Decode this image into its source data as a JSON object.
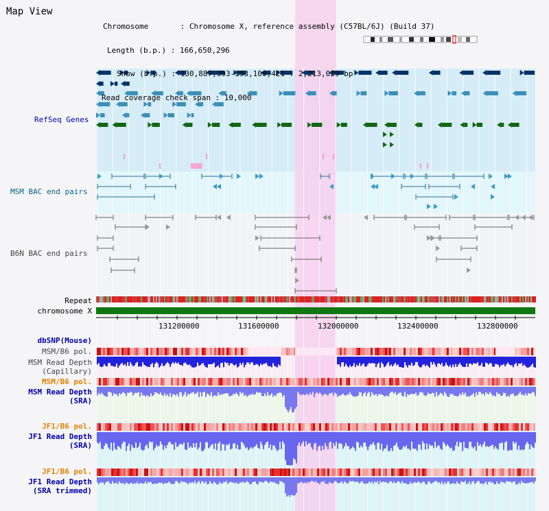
{
  "window": {
    "title": "Map View"
  },
  "header": {
    "chromosome": "Chromosome       : Chromosome X, reference assembly (C57BL/6J) (Build 37)",
    "length": "Length (b.p.) : 166,650,296",
    "show": "Show (b.p.) : 130,887,393-133,100,421 : 2,213,029 bp",
    "coverage": "Read coverage check span : 10,000"
  },
  "tracks": {
    "refseq": "RefSeq Genes",
    "msm_bac": "MSM BAC end pairs",
    "b6n_bac": "B6N BAC end pairs",
    "repeat": "Repeat",
    "chromosome": "chromosome X",
    "dbsnp": "dbSNP(Mouse)",
    "msm_b6_pol_1": "MSM/B6 pol.",
    "msm_depth_cap_1": "MSM Read Depth",
    "msm_depth_cap_2": "(Capillary)",
    "msm_b6_pol_2": "MSM/B6 pol.",
    "msm_depth_sra_1": "MSM Read Depth",
    "msm_depth_sra_2": "(SRA)",
    "jf1_b6_pol_1": "JF1/B6 pol.",
    "jf1_depth_sra_1": "JF1 Read Depth",
    "jf1_depth_sra_2": "(SRA)",
    "jf1_b6_pol_2": "JF1/B6 pol.",
    "jf1_depth_trim_1": "JF1 Read Depth",
    "jf1_depth_trim_2": "(SRA trimmed)"
  },
  "axis": {
    "ticks": [
      "131200000",
      "131600000",
      "132000000",
      "132400000",
      "132800000"
    ]
  },
  "colors": {
    "label_blue": "#0000aa",
    "label_orange": "#e08000",
    "gene_dark": "#003366",
    "gene_mid": "#3a8fb8",
    "gene_green": "#116611",
    "depth_blue": "#2222dd",
    "pol_red": "#ee3333",
    "highlight": "#f7d0ee"
  }
}
